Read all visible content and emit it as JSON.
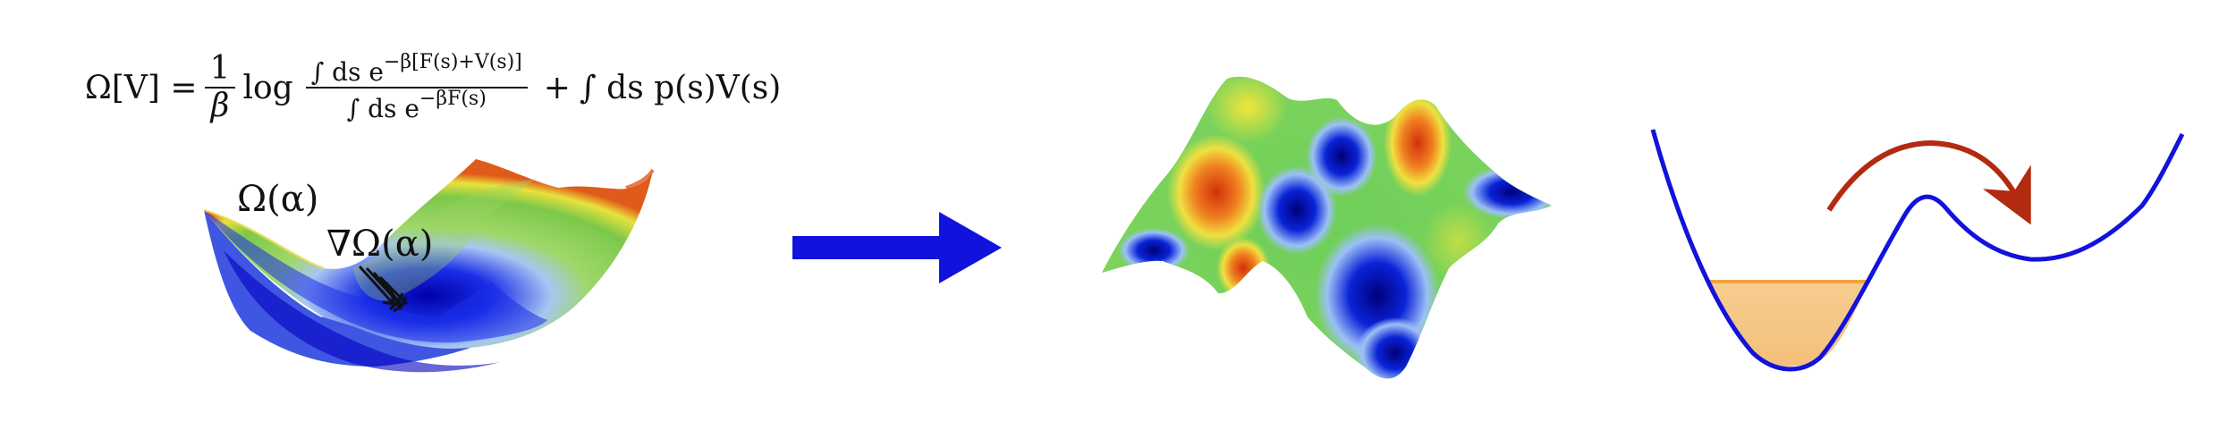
{
  "equation": {
    "lhs": "Ω[V] =",
    "frac1_num": "1",
    "frac1_den": "β",
    "log": "log",
    "frac2_num": "∫ ds e",
    "frac2_num_exp": "−β[F(s)+V(s)]",
    "frac2_den": "∫ ds e",
    "frac2_den_exp": "−βF(s)",
    "plus": "+",
    "rhs": "∫ ds p(s)V(s)"
  },
  "labels": {
    "omega_alpha": "Ω(α)",
    "grad_omega_alpha": "∇Ω(α)"
  },
  "colors": {
    "blue": "#1010e0",
    "arrow_blue": "#1212dd",
    "red_arrow": "#b22a10",
    "fill_orange": "#f5c98a",
    "fill_orange_edge": "#f0a43c",
    "surface_green": "#8fd14f",
    "surface_yellow": "#f0e040",
    "surface_red": "#e0451c"
  },
  "icons": {
    "central_arrow": "right-arrow-icon",
    "hop_arrow": "curved-arrow-icon"
  }
}
